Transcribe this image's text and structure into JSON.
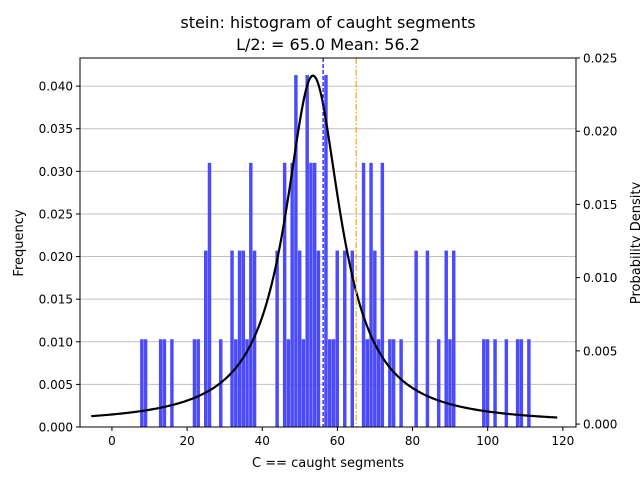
{
  "chart_data": {
    "type": "bar",
    "title_line1": "stein: histogram of caught segments",
    "title_line2": "L/2: = 65.0 Mean: 56.2",
    "xlabel": "C == caught segments",
    "ylabel_left": "Frequency",
    "ylabel_right": "Probability Density",
    "xlim": [
      -8.5,
      123.5
    ],
    "ylim_left": [
      0,
      0.0433
    ],
    "ylim_right": [
      -0.0002,
      0.025
    ],
    "xticks": [
      0,
      20,
      40,
      60,
      80,
      100,
      120
    ],
    "xtick_labels": [
      "0",
      "20",
      "40",
      "60",
      "80",
      "100",
      "120"
    ],
    "yticks_left": [
      0,
      0.005,
      0.01,
      0.015,
      0.02,
      0.025,
      0.03,
      0.035,
      0.04
    ],
    "ytick_labels_left": [
      "0.000",
      "0.005",
      "0.010",
      "0.015",
      "0.020",
      "0.025",
      "0.030",
      "0.035",
      "0.040"
    ],
    "yticks_right": [
      0,
      0.005,
      0.01,
      0.015,
      0.02,
      0.025
    ],
    "ytick_labels_right": [
      "0.000",
      "0.005",
      "0.010",
      "0.015",
      "0.020",
      "0.025"
    ],
    "grid": "horizontal",
    "bar_width": 1,
    "bars": [
      {
        "x": 8,
        "y": 0.0103
      },
      {
        "x": 9,
        "y": 0.0103
      },
      {
        "x": 13,
        "y": 0.0103
      },
      {
        "x": 14,
        "y": 0.0103
      },
      {
        "x": 16,
        "y": 0.0103
      },
      {
        "x": 22,
        "y": 0.0103
      },
      {
        "x": 23,
        "y": 0.0103
      },
      {
        "x": 25,
        "y": 0.0207
      },
      {
        "x": 26,
        "y": 0.031
      },
      {
        "x": 29,
        "y": 0.0103
      },
      {
        "x": 32,
        "y": 0.0207
      },
      {
        "x": 33,
        "y": 0.0103
      },
      {
        "x": 34,
        "y": 0.0207
      },
      {
        "x": 35,
        "y": 0.0207
      },
      {
        "x": 36,
        "y": 0.0103
      },
      {
        "x": 37,
        "y": 0.031
      },
      {
        "x": 38,
        "y": 0.0207
      },
      {
        "x": 44,
        "y": 0.0207
      },
      {
        "x": 46,
        "y": 0.031
      },
      {
        "x": 47,
        "y": 0.0103
      },
      {
        "x": 48,
        "y": 0.031
      },
      {
        "x": 49,
        "y": 0.0413
      },
      {
        "x": 50,
        "y": 0.0207
      },
      {
        "x": 51,
        "y": 0.0103
      },
      {
        "x": 52,
        "y": 0.0413
      },
      {
        "x": 53,
        "y": 0.031
      },
      {
        "x": 54,
        "y": 0.031
      },
      {
        "x": 55,
        "y": 0.0207
      },
      {
        "x": 57,
        "y": 0.0413
      },
      {
        "x": 58,
        "y": 0.0103
      },
      {
        "x": 59,
        "y": 0.0103
      },
      {
        "x": 60,
        "y": 0.0207
      },
      {
        "x": 62,
        "y": 0.0207
      },
      {
        "x": 64,
        "y": 0.0207
      },
      {
        "x": 67,
        "y": 0.031
      },
      {
        "x": 68,
        "y": 0.0103
      },
      {
        "x": 69,
        "y": 0.031
      },
      {
        "x": 70,
        "y": 0.0207
      },
      {
        "x": 71,
        "y": 0.0103
      },
      {
        "x": 72,
        "y": 0.031
      },
      {
        "x": 74,
        "y": 0.0103
      },
      {
        "x": 75,
        "y": 0.0103
      },
      {
        "x": 77,
        "y": 0.0103
      },
      {
        "x": 81,
        "y": 0.0207
      },
      {
        "x": 84,
        "y": 0.0207
      },
      {
        "x": 87,
        "y": 0.0103
      },
      {
        "x": 89,
        "y": 0.0207
      },
      {
        "x": 90,
        "y": 0.0103
      },
      {
        "x": 91,
        "y": 0.0207
      },
      {
        "x": 99,
        "y": 0.0103
      },
      {
        "x": 100,
        "y": 0.0103
      },
      {
        "x": 102,
        "y": 0.0103
      },
      {
        "x": 105,
        "y": 0.0103
      },
      {
        "x": 108,
        "y": 0.0103
      },
      {
        "x": 109,
        "y": 0.0103
      },
      {
        "x": 111,
        "y": 0.0103
      }
    ],
    "pdf_curve": {
      "x0": 53.5,
      "scale": 9.0,
      "peak": 0.0238,
      "x_range": [
        -5.5,
        118.5
      ]
    },
    "mean_line": {
      "x": 56.2,
      "color": "#0000ff"
    },
    "half_length_line": {
      "x": 65.0,
      "color": "#ffa500"
    },
    "colors": {
      "bars": "#4b4bfa",
      "curve": "#000000",
      "grid": "#c0c0c0"
    }
  }
}
